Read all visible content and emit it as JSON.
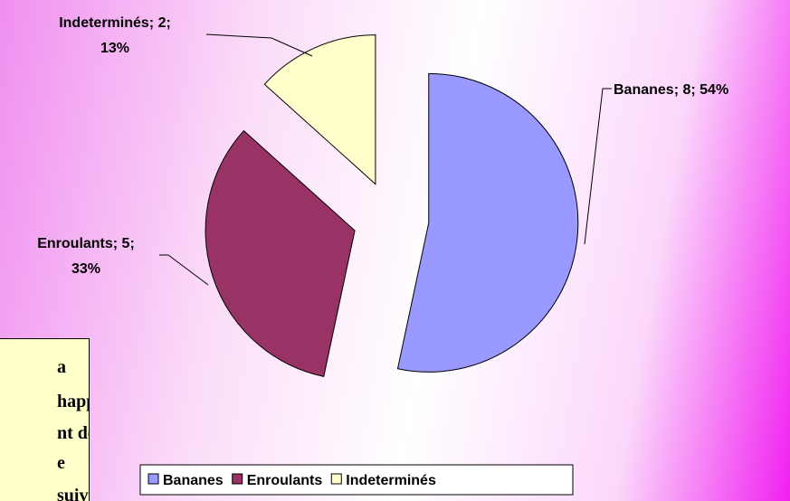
{
  "chart_data": {
    "type": "pie",
    "categories": [
      "Bananes",
      "Enroulants",
      "Indeterminés"
    ],
    "values": [
      8,
      5,
      2
    ],
    "value_labels": [
      "Bananes; 8; 54%",
      "Enroulants; 5; 33%",
      "Indeterminés; 2; 13%"
    ],
    "colors": [
      "#9999ff",
      "#993366",
      "#ffffcc"
    ],
    "legend": "bottom"
  },
  "text_box": {
    "lines": [
      "a",
      "happe",
      "nt de",
      "e",
      "suivis"
    ]
  }
}
